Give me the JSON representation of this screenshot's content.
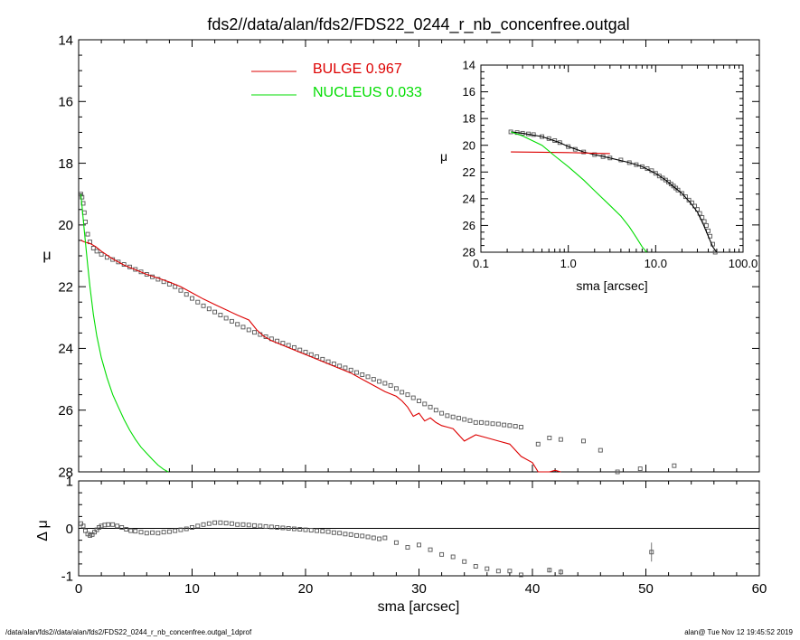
{
  "chart_data": [
    {
      "id": "main",
      "type": "scatter",
      "title": "fds2//data/alan/fds2/FDS22_0244_r_nb_concenfree.outgal",
      "xlabel": "",
      "ylabel": "μ",
      "xlim": [
        0,
        60
      ],
      "ylim": [
        28,
        14
      ],
      "y_inverted": true,
      "yticks": [
        "14",
        "16",
        "18",
        "20",
        "22",
        "24",
        "26",
        "28"
      ],
      "xticks": [
        "0",
        "10",
        "20",
        "30",
        "40",
        "50",
        "60"
      ],
      "legend": [
        {
          "label": "BULGE  0.967",
          "color": "#dd0000"
        },
        {
          "label": "NUCLEUS  0.033",
          "color": "#00dd00"
        }
      ],
      "series": [
        {
          "name": "data",
          "style": "open-square",
          "color": "#555555",
          "x": [
            0.2,
            0.3,
            0.4,
            0.5,
            0.6,
            0.8,
            1.0,
            1.3,
            1.6,
            2.0,
            2.5,
            3.0,
            3.5,
            4.0,
            4.5,
            5.0,
            5.5,
            6.0,
            6.5,
            7.0,
            7.5,
            8.0,
            8.5,
            9.0,
            9.5,
            10.0,
            10.5,
            11.0,
            11.5,
            12.0,
            12.5,
            13.0,
            13.5,
            14.0,
            14.5,
            15.0,
            15.5,
            16.0,
            16.5,
            17.0,
            17.5,
            18.0,
            18.5,
            19.0,
            19.5,
            20.0,
            20.5,
            21.0,
            21.5,
            22.0,
            22.5,
            23.0,
            23.5,
            24.0,
            24.5,
            25.0,
            25.5,
            26.0,
            26.5,
            27.0,
            27.5,
            28.0,
            28.5,
            29.0,
            29.5,
            30.0,
            30.5,
            31.0,
            31.5,
            32.0,
            32.5,
            33.0,
            33.5,
            34.0,
            34.5,
            35.0,
            35.5,
            36.0,
            36.5,
            37.0,
            37.5,
            38.0,
            38.5,
            39.0,
            40.5,
            41.5,
            42.5,
            44.5,
            46.0,
            47.5,
            49.5,
            52.5
          ],
          "y": [
            19.0,
            19.1,
            19.3,
            19.6,
            19.9,
            20.3,
            20.55,
            20.75,
            20.85,
            20.95,
            21.05,
            21.12,
            21.2,
            21.28,
            21.36,
            21.44,
            21.52,
            21.6,
            21.68,
            21.76,
            21.84,
            21.92,
            22.0,
            22.12,
            22.25,
            22.38,
            22.5,
            22.62,
            22.72,
            22.82,
            22.92,
            23.02,
            23.12,
            23.22,
            23.31,
            23.4,
            23.48,
            23.55,
            23.62,
            23.69,
            23.76,
            23.83,
            23.9,
            23.97,
            24.05,
            24.12,
            24.2,
            24.27,
            24.35,
            24.43,
            24.5,
            24.57,
            24.63,
            24.7,
            24.78,
            24.85,
            24.92,
            25.0,
            25.07,
            25.13,
            25.2,
            25.3,
            25.42,
            25.5,
            25.6,
            25.7,
            25.8,
            25.9,
            26.0,
            26.1,
            26.18,
            26.22,
            26.26,
            26.3,
            26.34,
            26.4,
            26.4,
            26.42,
            26.44,
            26.45,
            26.48,
            26.5,
            26.52,
            26.55,
            27.1,
            26.9,
            26.95,
            27.0,
            27.3,
            28.0,
            27.9,
            27.8
          ]
        },
        {
          "name": "BULGE  0.967",
          "style": "line",
          "color": "#dd0000",
          "x": [
            0.2,
            0.5,
            1.0,
            1.5,
            2.0,
            3.0,
            4.0,
            5.0,
            6.0,
            7.0,
            8.0,
            9.0,
            10.0,
            11.0,
            12.0,
            13.0,
            14.0,
            15.0,
            15.7,
            16.0,
            16.3,
            17.0,
            18.0,
            19.0,
            20.0,
            21.0,
            22.0,
            23.0,
            24.0,
            25.0,
            26.0,
            27.0,
            28.0,
            28.5,
            29.0,
            29.5,
            30.0,
            30.5,
            31.0,
            31.5,
            32.0,
            32.5,
            33.0,
            34.0,
            35.0,
            36.0,
            37.0,
            38.0,
            39.0,
            40.0,
            40.5,
            41.0,
            41.5,
            42.0,
            42.5
          ],
          "y": [
            20.5,
            20.55,
            20.6,
            20.7,
            20.85,
            21.1,
            21.3,
            21.45,
            21.6,
            21.72,
            21.85,
            22.0,
            22.2,
            22.4,
            22.58,
            22.75,
            22.92,
            23.08,
            23.4,
            23.5,
            23.6,
            23.75,
            23.9,
            24.05,
            24.2,
            24.35,
            24.5,
            24.65,
            24.8,
            25.0,
            25.2,
            25.4,
            25.55,
            25.7,
            25.9,
            26.2,
            26.1,
            26.35,
            26.25,
            26.4,
            26.5,
            26.55,
            26.6,
            27.0,
            26.8,
            26.9,
            27.0,
            27.1,
            27.5,
            27.7,
            28.0,
            28.1,
            28.0,
            27.95,
            28.05
          ]
        },
        {
          "name": "NUCLEUS  0.033",
          "style": "line",
          "color": "#00dd00",
          "x": [
            0.2,
            0.5,
            0.8,
            1.0,
            1.3,
            1.6,
            2.0,
            2.5,
            3.0,
            3.5,
            4.0,
            4.5,
            5.0,
            5.5,
            6.0,
            6.5,
            7.0,
            7.5,
            7.9
          ],
          "y": [
            19.0,
            20.2,
            21.3,
            22.0,
            22.9,
            23.6,
            24.3,
            24.95,
            25.5,
            25.9,
            26.3,
            26.65,
            26.95,
            27.2,
            27.4,
            27.6,
            27.78,
            27.92,
            28.0
          ]
        }
      ]
    },
    {
      "id": "residual",
      "type": "scatter",
      "xlabel": "sma [arcsec]",
      "ylabel": "Δ μ",
      "xlim": [
        0,
        60
      ],
      "ylim": [
        -1,
        1
      ],
      "yticks": [
        "1",
        "0",
        "-1"
      ],
      "xticks": [
        "0",
        "10",
        "20",
        "30",
        "40",
        "50",
        "60"
      ],
      "series": [
        {
          "name": "residual",
          "style": "open-square",
          "color": "#555555",
          "x": [
            0.2,
            0.4,
            0.6,
            0.8,
            1.0,
            1.2,
            1.4,
            1.6,
            1.8,
            2.0,
            2.3,
            2.6,
            3.0,
            3.4,
            3.8,
            4.2,
            4.6,
            5.0,
            5.5,
            6.0,
            6.5,
            7.0,
            7.5,
            8.0,
            8.5,
            9.0,
            9.5,
            10.0,
            10.5,
            11.0,
            11.5,
            12.0,
            12.5,
            13.0,
            13.5,
            14.0,
            14.5,
            15.0,
            15.5,
            16.0,
            16.5,
            17.0,
            17.5,
            18.0,
            18.5,
            19.0,
            19.5,
            20.0,
            20.5,
            21.0,
            21.5,
            22.0,
            22.5,
            23.0,
            23.5,
            24.0,
            24.5,
            25.0,
            25.5,
            26.0,
            26.5,
            27.0,
            28.0,
            29.0,
            30.0,
            31.0,
            32.0,
            33.0,
            34.0,
            35.0,
            36.0,
            37.0,
            38.0,
            39.0,
            41.5,
            42.5,
            50.5
          ],
          "y": [
            0.1,
            0.05,
            -0.05,
            -0.12,
            -0.15,
            -0.13,
            -0.08,
            -0.03,
            0.02,
            0.05,
            0.07,
            0.08,
            0.08,
            0.05,
            0.02,
            -0.02,
            -0.05,
            -0.06,
            -0.08,
            -0.1,
            -0.09,
            -0.1,
            -0.08,
            -0.07,
            -0.05,
            -0.03,
            -0.01,
            0.02,
            0.05,
            0.08,
            0.1,
            0.12,
            0.12,
            0.11,
            0.1,
            0.08,
            0.08,
            0.07,
            0.06,
            0.05,
            0.04,
            0.03,
            0.02,
            0.01,
            0.0,
            -0.01,
            -0.02,
            -0.03,
            -0.04,
            -0.05,
            -0.06,
            -0.07,
            -0.09,
            -0.1,
            -0.12,
            -0.13,
            -0.15,
            -0.16,
            -0.18,
            -0.2,
            -0.22,
            -0.2,
            -0.3,
            -0.4,
            -0.35,
            -0.45,
            -0.55,
            -0.6,
            -0.7,
            -0.8,
            -0.85,
            -0.9,
            -0.9,
            -0.98,
            -0.88,
            -0.92,
            -0.5
          ],
          "errors": [
            0,
            0,
            0,
            0,
            0,
            0,
            0,
            0,
            0,
            0,
            0,
            0,
            0,
            0,
            0,
            0,
            0,
            0,
            0,
            0,
            0,
            0,
            0,
            0,
            0,
            0,
            0,
            0,
            0,
            0,
            0,
            0,
            0,
            0,
            0,
            0,
            0,
            0,
            0,
            0,
            0,
            0,
            0,
            0,
            0,
            0,
            0,
            0,
            0,
            0,
            0,
            0,
            0,
            0,
            0,
            0,
            0,
            0,
            0,
            0,
            0,
            0,
            0,
            0,
            0,
            0,
            0,
            0,
            0,
            0,
            0,
            0,
            0,
            0,
            0.05,
            0.06,
            0.2
          ]
        }
      ]
    },
    {
      "id": "inset",
      "type": "scatter",
      "xlabel": "sma [arcsec]",
      "ylabel": "μ",
      "xscale": "log",
      "xlim": [
        0.1,
        100
      ],
      "ylim": [
        28,
        14
      ],
      "y_inverted": true,
      "yticks": [
        "14",
        "16",
        "18",
        "20",
        "22",
        "24",
        "26",
        "28"
      ],
      "xticks": [
        "0.1",
        "1.0",
        "10.0",
        "100.0"
      ],
      "series": [
        {
          "name": "data",
          "style": "open-square",
          "color": "#555555",
          "x": [
            0.22,
            0.26,
            0.3,
            0.35,
            0.4,
            0.5,
            0.6,
            0.7,
            0.8,
            1.0,
            1.2,
            1.5,
            2.0,
            2.5,
            3.0,
            4.0,
            5.0,
            6.0,
            7.0,
            8.0,
            9.0,
            10.0,
            11.0,
            12.0,
            13.0,
            14.0,
            15.0,
            16.0,
            17.0,
            18.0,
            20.0,
            22.0,
            24.0,
            26.0,
            28.0,
            30.0,
            32.0,
            34.0,
            36.0,
            38.0,
            40.0,
            42.0,
            45.0,
            48.0
          ],
          "y": [
            19.0,
            19.05,
            19.1,
            19.15,
            19.2,
            19.35,
            19.5,
            19.65,
            19.8,
            20.1,
            20.3,
            20.5,
            20.7,
            20.85,
            20.95,
            21.1,
            21.3,
            21.45,
            21.6,
            21.75,
            21.9,
            22.1,
            22.3,
            22.45,
            22.6,
            22.75,
            22.9,
            23.05,
            23.2,
            23.35,
            23.6,
            23.85,
            24.1,
            24.3,
            24.55,
            24.8,
            25.1,
            25.4,
            25.7,
            26.0,
            26.4,
            26.8,
            27.4,
            28.0
          ]
        },
        {
          "name": "model",
          "style": "line",
          "color": "#000000",
          "x": [
            0.22,
            0.3,
            0.5,
            0.8,
            1.0,
            1.5,
            2.0,
            3.0,
            5.0,
            7.0,
            10.0,
            13.0,
            16.0,
            20.0,
            25.0,
            30.0,
            35.0,
            40.0,
            45.0,
            50.0
          ],
          "y": [
            19.0,
            19.1,
            19.35,
            19.8,
            20.1,
            20.5,
            20.7,
            20.95,
            21.3,
            21.6,
            22.1,
            22.6,
            23.1,
            23.6,
            24.3,
            25.0,
            25.9,
            26.8,
            27.6,
            28.0
          ]
        },
        {
          "name": "bulge",
          "style": "line",
          "color": "#dd0000",
          "x": [
            0.22,
            0.5,
            1.0,
            2.0,
            3.0
          ],
          "y": [
            20.5,
            20.52,
            20.55,
            20.6,
            20.62
          ]
        },
        {
          "name": "nucleus",
          "style": "line",
          "color": "#00dd00",
          "x": [
            0.22,
            0.3,
            0.5,
            0.7,
            1.0,
            1.5,
            2.0,
            3.0,
            4.0,
            5.0,
            6.0,
            7.0,
            7.9
          ],
          "y": [
            19.0,
            19.3,
            20.0,
            20.8,
            21.6,
            22.6,
            23.4,
            24.5,
            25.3,
            26.1,
            26.9,
            27.6,
            28.0
          ]
        }
      ]
    }
  ],
  "footer": {
    "left": "/data/alan/fds2//data/alan/fds2/FDS22_0244_r_nb_concenfree.outgal_1dprof",
    "right": "alan@  Tue Nov 12 19:45:52 2019"
  }
}
